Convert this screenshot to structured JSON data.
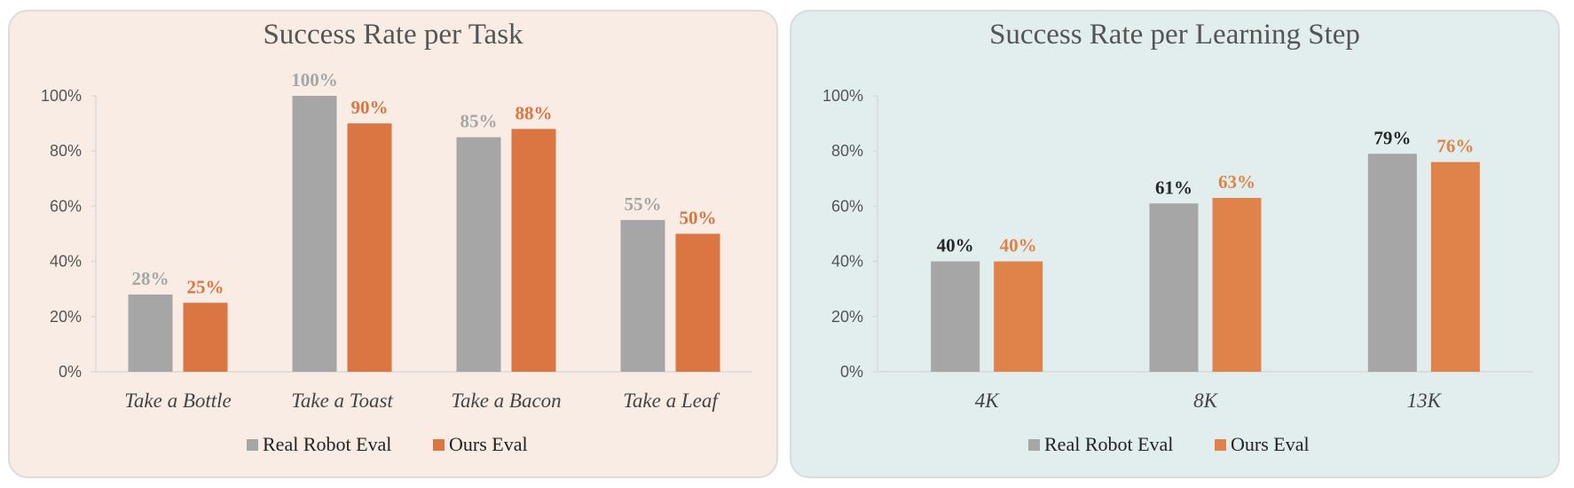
{
  "chart_data": [
    {
      "type": "bar",
      "title": "Success Rate per Task",
      "categories": [
        "Take a Bottle",
        "Take a Toast",
        "Take a Bacon",
        "Take a Leaf"
      ],
      "series": [
        {
          "name": "Real Robot Eval",
          "values": [
            28,
            100,
            85,
            55
          ],
          "color": "#a6a6a6",
          "label_color": "#a6a6a6"
        },
        {
          "name": "Ours Eval",
          "values": [
            25,
            90,
            88,
            50
          ],
          "color": "#db7542",
          "label_color": "#db7542"
        }
      ],
      "yticks": [
        "0%",
        "20%",
        "40%",
        "60%",
        "80%",
        "100%"
      ],
      "ylim": [
        0,
        100
      ],
      "unit": "%",
      "legend": "bottom",
      "grid": false,
      "background": "#f9ece5"
    },
    {
      "type": "bar",
      "title": "Success Rate per Learning Step",
      "categories": [
        "4K",
        "8K",
        "13K"
      ],
      "series": [
        {
          "name": "Real Robot Eval",
          "values": [
            40,
            61,
            79
          ],
          "color": "#a6a6a6",
          "label_color": "#262626"
        },
        {
          "name": "Ours Eval",
          "values": [
            40,
            63,
            76
          ],
          "color": "#e0834a",
          "label_color": "#e0834a"
        }
      ],
      "yticks": [
        "0%",
        "20%",
        "40%",
        "60%",
        "80%",
        "100%"
      ],
      "ylim": [
        0,
        100
      ],
      "unit": "%",
      "legend": "bottom",
      "grid": false,
      "background": "#e2eded"
    }
  ]
}
